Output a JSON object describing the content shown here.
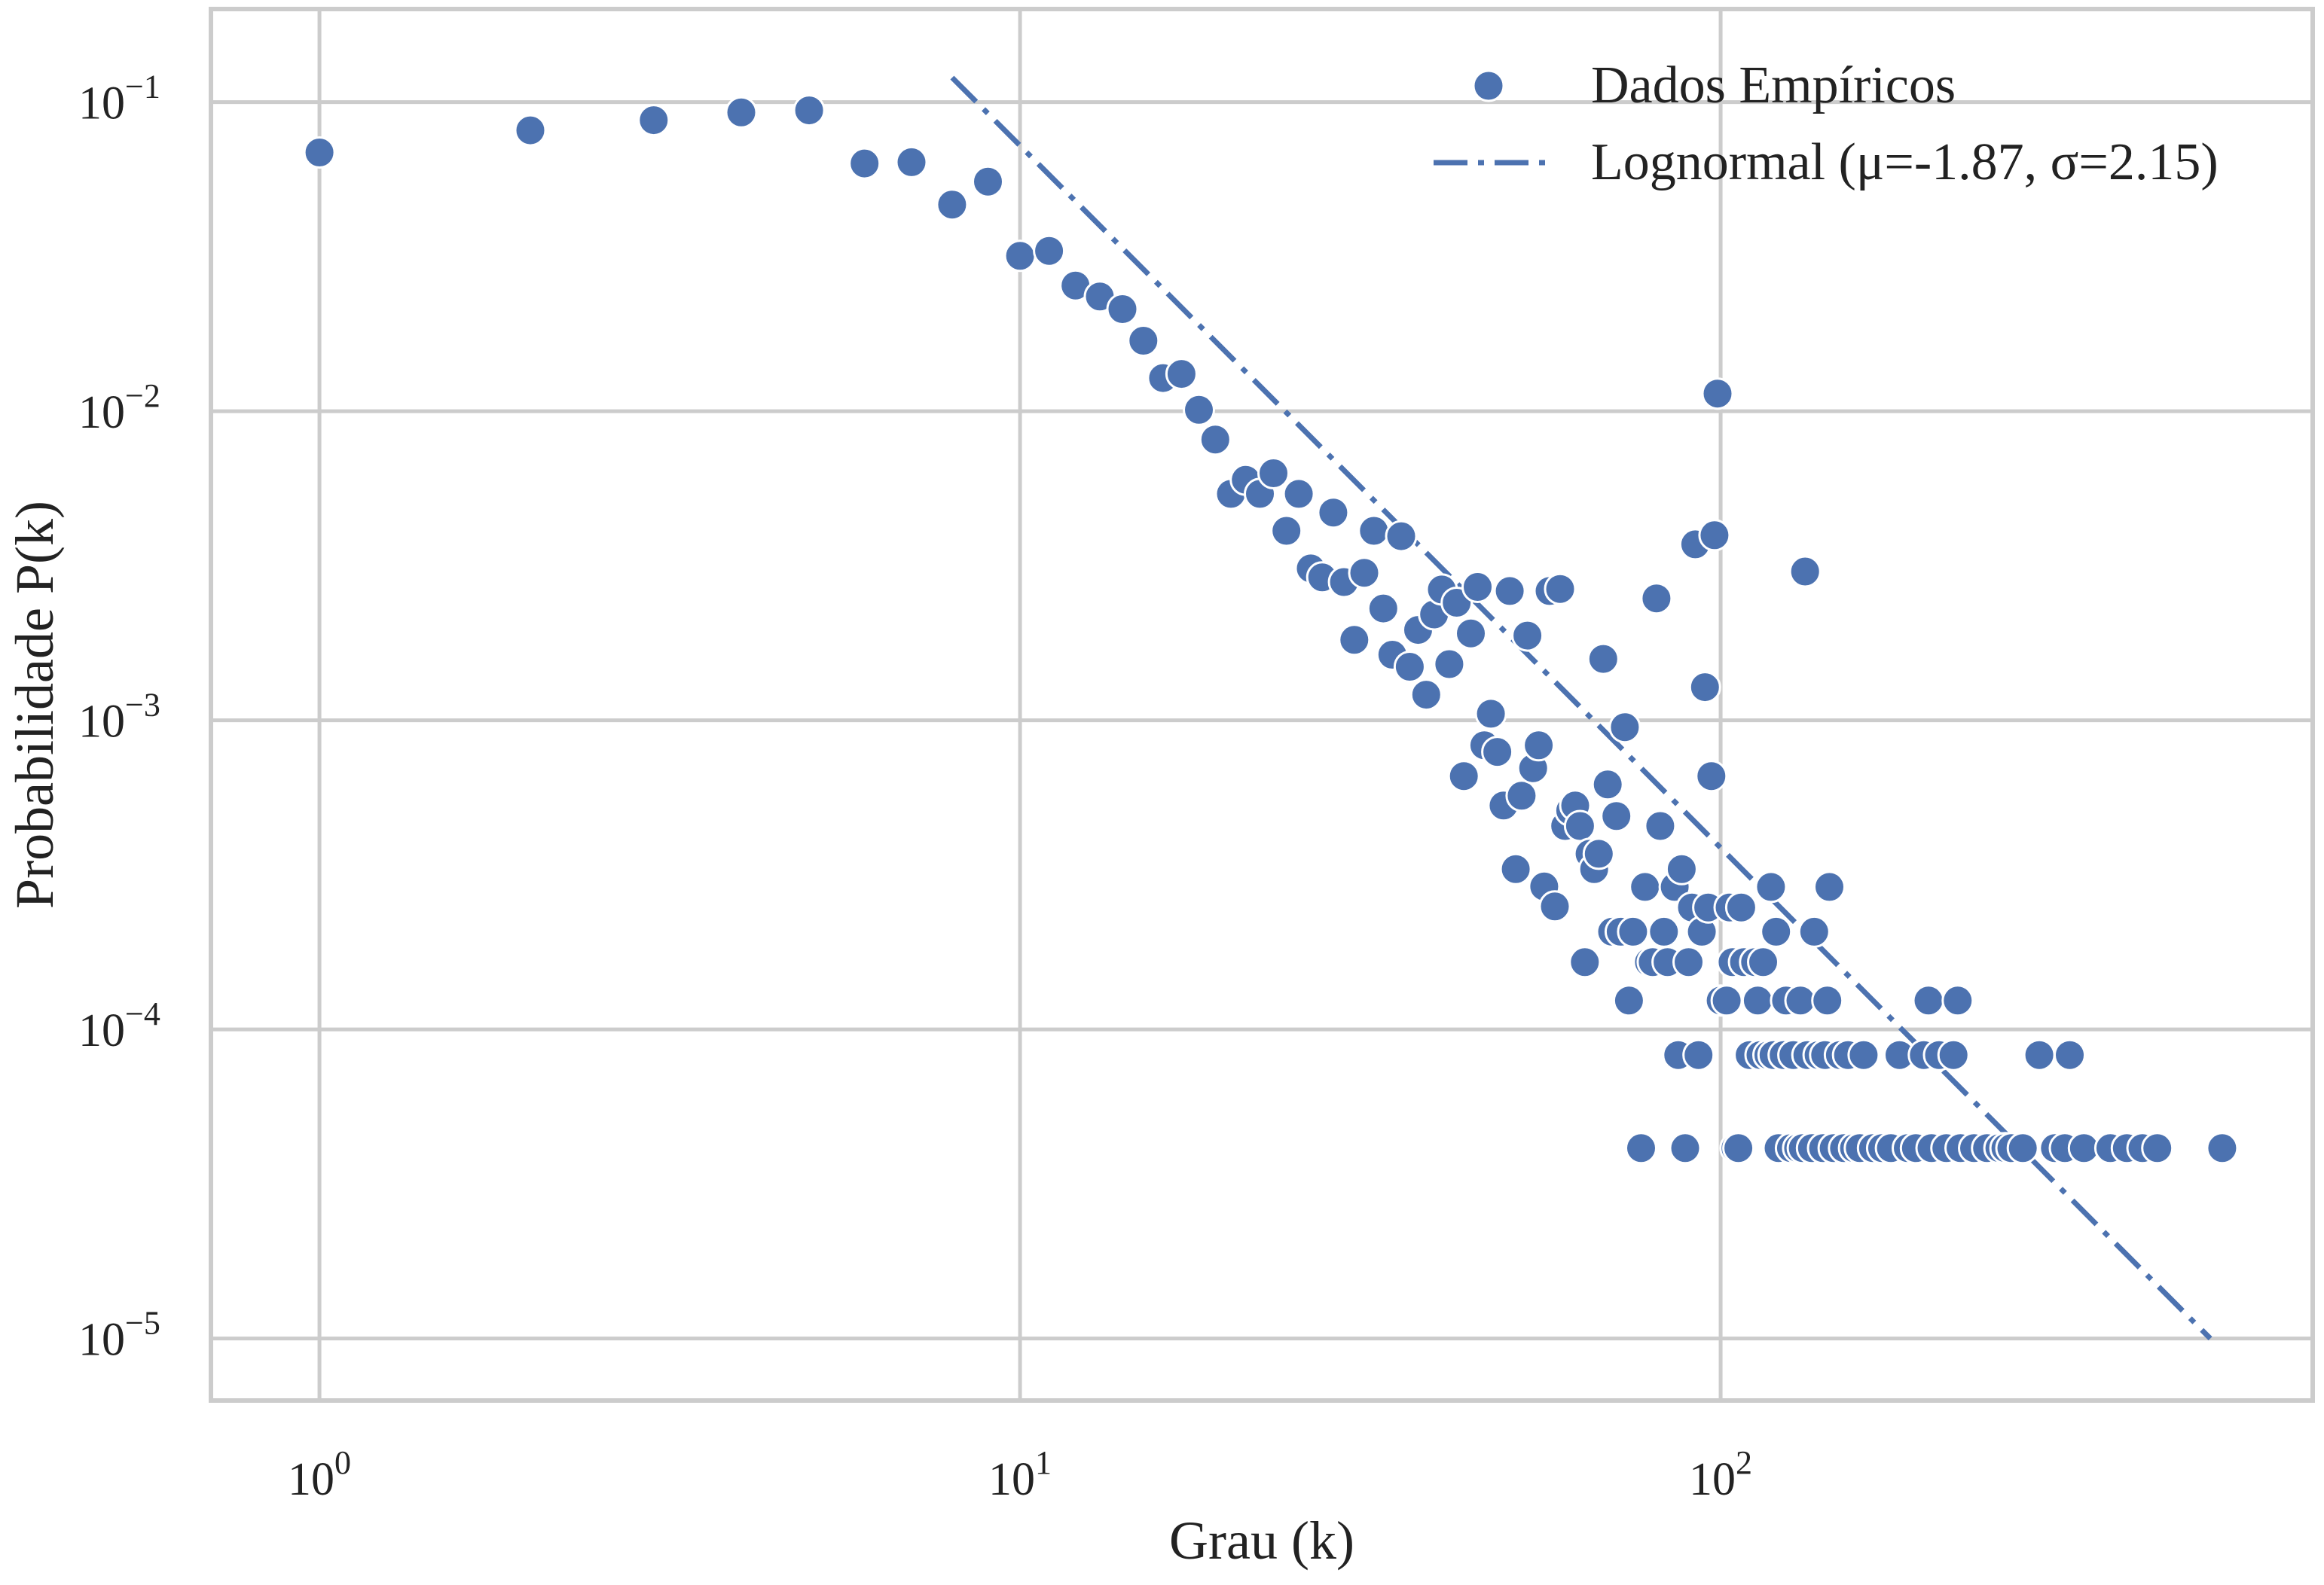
{
  "chart_data": {
    "type": "scatter",
    "x_scale": "log",
    "y_scale": "log",
    "xlim": [
      0.7,
      700
    ],
    "ylim": [
      6.3e-06,
      0.2
    ],
    "xlabel": "Grau (k)",
    "ylabel": "Probabilidade P(k)",
    "grid": true,
    "legend_position": "top-right",
    "colors": {
      "series": "#4c72b0",
      "grid": "#cccccc",
      "frame": "#cccccc",
      "background": "#ffffff"
    },
    "x_ticks": [
      {
        "value": 1,
        "base": "10",
        "exp": "0"
      },
      {
        "value": 10,
        "base": "10",
        "exp": "1"
      },
      {
        "value": 100,
        "base": "10",
        "exp": "2"
      }
    ],
    "y_ticks": [
      {
        "value": 0.1,
        "base": "10",
        "exp": "−1"
      },
      {
        "value": 0.01,
        "base": "10",
        "exp": "−2"
      },
      {
        "value": 0.001,
        "base": "10",
        "exp": "−3"
      },
      {
        "value": 0.0001,
        "base": "10",
        "exp": "−4"
      },
      {
        "value": 1e-05,
        "base": "10",
        "exp": "−5"
      }
    ],
    "series": [
      {
        "name": "Dados Empíricos",
        "kind": "scatter",
        "points": [
          [
            1,
            0.0687
          ],
          [
            2,
            0.081
          ],
          [
            3,
            0.0874
          ],
          [
            4,
            0.0926
          ],
          [
            5,
            0.094
          ],
          [
            6,
            0.0633
          ],
          [
            7,
            0.0639
          ],
          [
            8,
            0.0466
          ],
          [
            9,
            0.0553
          ],
          [
            10,
            0.0318
          ],
          [
            11,
            0.033
          ],
          [
            12,
            0.0255
          ],
          [
            13,
            0.0235
          ],
          [
            14,
            0.0214
          ],
          [
            15,
            0.0169
          ],
          [
            16,
            0.0128
          ],
          [
            17,
            0.0132
          ],
          [
            18,
            0.0101
          ],
          [
            19,
            0.0081
          ],
          [
            20,
            0.0054
          ],
          [
            21,
            0.006
          ],
          [
            22,
            0.0054
          ],
          [
            23,
            0.0063
          ],
          [
            24,
            0.0041
          ],
          [
            25,
            0.0054
          ],
          [
            26,
            0.0031
          ],
          [
            27,
            0.0029
          ],
          [
            28,
            0.0047
          ],
          [
            29,
            0.0028
          ],
          [
            30,
            0.00182
          ],
          [
            31,
            0.003
          ],
          [
            32,
            0.0041
          ],
          [
            33,
            0.0023
          ],
          [
            34,
            0.00163
          ],
          [
            35,
            0.00394
          ],
          [
            36,
            0.00149
          ],
          [
            37,
            0.00196
          ],
          [
            38,
            0.00121
          ],
          [
            39,
            0.0022
          ],
          [
            40,
            0.00265
          ],
          [
            41,
            0.00152
          ],
          [
            42,
            0.0024
          ],
          [
            43,
            0.00066
          ],
          [
            44,
            0.00191
          ],
          [
            45,
            0.0027
          ],
          [
            46,
            0.00083
          ],
          [
            47,
            0.00105
          ],
          [
            48,
            0.00079
          ],
          [
            49,
            0.00053
          ],
          [
            50,
            0.00262
          ],
          [
            51,
            0.00033
          ],
          [
            52,
            0.00057
          ],
          [
            53,
            0.00188
          ],
          [
            54,
            0.0007
          ],
          [
            55,
            0.00083
          ],
          [
            56,
            0.00029
          ],
          [
            57,
            0.00262
          ],
          [
            58,
            0.00025
          ],
          [
            59,
            0.00266
          ],
          [
            60,
            0.000455
          ],
          [
            61,
            0.00051
          ],
          [
            62,
            0.00053
          ],
          [
            63,
            0.000455
          ],
          [
            64,
            0.000165
          ],
          [
            65,
            0.00037
          ],
          [
            66,
            0.00033
          ],
          [
            67,
            0.00037
          ],
          [
            68,
            0.00158
          ],
          [
            69,
            0.00062
          ],
          [
            70,
            0.000207
          ],
          [
            71,
            0.00049
          ],
          [
            72,
            0.000207
          ],
          [
            73,
            0.00095
          ],
          [
            74,
            0.000124
          ],
          [
            75,
            0.000207
          ],
          [
            77,
            4.13e-05
          ],
          [
            78,
            0.000289
          ],
          [
            79,
            0.000165
          ],
          [
            80,
            0.000165
          ],
          [
            81,
            0.00248
          ],
          [
            82,
            0.000455
          ],
          [
            83,
            0.000207
          ],
          [
            84,
            0.000165
          ],
          [
            86,
            0.000289
          ],
          [
            87,
            8.26e-05
          ],
          [
            88,
            0.00033
          ],
          [
            89,
            4.13e-05
          ],
          [
            90,
            0.000165
          ],
          [
            91,
            0.000248
          ],
          [
            92,
            0.00371
          ],
          [
            93,
            8.26e-05
          ],
          [
            94,
            0.000207
          ],
          [
            95,
            0.00128
          ],
          [
            96,
            0.000248
          ],
          [
            97,
            0.00066
          ],
          [
            98,
            0.00397
          ],
          [
            99,
            0.0114
          ],
          [
            100,
            0.000124
          ],
          [
            102,
            0.000124
          ],
          [
            103,
            0.000248
          ],
          [
            104,
            0.000165
          ],
          [
            105,
            4.13e-05
          ],
          [
            106,
            4.13e-05
          ],
          [
            107,
            0.000248
          ],
          [
            108,
            0.000165
          ],
          [
            110,
            8.26e-05
          ],
          [
            112,
            0.000165
          ],
          [
            113,
            0.000124
          ],
          [
            114,
            8.26e-05
          ],
          [
            115,
            0.000165
          ],
          [
            117,
            8.26e-05
          ],
          [
            118,
            0.000289
          ],
          [
            119,
            8.26e-05
          ],
          [
            120,
            0.000207
          ],
          [
            121,
            4.13e-05
          ],
          [
            123,
            8.26e-05
          ],
          [
            124,
            0.000124
          ],
          [
            126,
            4.13e-05
          ],
          [
            127,
            8.26e-05
          ],
          [
            129,
            4.13e-05
          ],
          [
            130,
            0.000124
          ],
          [
            131,
            4.13e-05
          ],
          [
            132,
            0.00303
          ],
          [
            133,
            8.26e-05
          ],
          [
            135,
            4.13e-05
          ],
          [
            136,
            0.000207
          ],
          [
            138,
            8.26e-05
          ],
          [
            140,
            4.13e-05
          ],
          [
            141,
            8.26e-05
          ],
          [
            142,
            0.000124
          ],
          [
            143,
            0.000289
          ],
          [
            145,
            4.13e-05
          ],
          [
            148,
            8.26e-05
          ],
          [
            150,
            4.13e-05
          ],
          [
            152,
            8.26e-05
          ],
          [
            155,
            4.13e-05
          ],
          [
            158,
            4.13e-05
          ],
          [
            160,
            8.26e-05
          ],
          [
            165,
            4.13e-05
          ],
          [
            170,
            4.13e-05
          ],
          [
            175,
            4.13e-05
          ],
          [
            180,
            8.26e-05
          ],
          [
            185,
            4.13e-05
          ],
          [
            190,
            4.13e-05
          ],
          [
            195,
            8.26e-05
          ],
          [
            198,
            0.000124
          ],
          [
            200,
            4.13e-05
          ],
          [
            205,
            8.26e-05
          ],
          [
            210,
            4.13e-05
          ],
          [
            215,
            8.26e-05
          ],
          [
            218,
            0.000124
          ],
          [
            220,
            4.13e-05
          ],
          [
            230,
            4.13e-05
          ],
          [
            240,
            4.13e-05
          ],
          [
            250,
            4.13e-05
          ],
          [
            255,
            4.13e-05
          ],
          [
            260,
            4.13e-05
          ],
          [
            270,
            4.13e-05
          ],
          [
            285,
            8.26e-05
          ],
          [
            300,
            4.13e-05
          ],
          [
            310,
            4.13e-05
          ],
          [
            315,
            8.26e-05
          ],
          [
            330,
            4.13e-05
          ],
          [
            360,
            4.13e-05
          ],
          [
            380,
            4.13e-05
          ],
          [
            400,
            4.13e-05
          ],
          [
            420,
            4.13e-05
          ],
          [
            520,
            4.13e-05
          ]
        ]
      },
      {
        "name": "Lognormal (μ=-1.87, σ=2.15)",
        "kind": "line",
        "dash": "dash-dot",
        "points": [
          [
            8,
            0.12
          ],
          [
            500,
            1e-05
          ]
        ]
      }
    ]
  }
}
